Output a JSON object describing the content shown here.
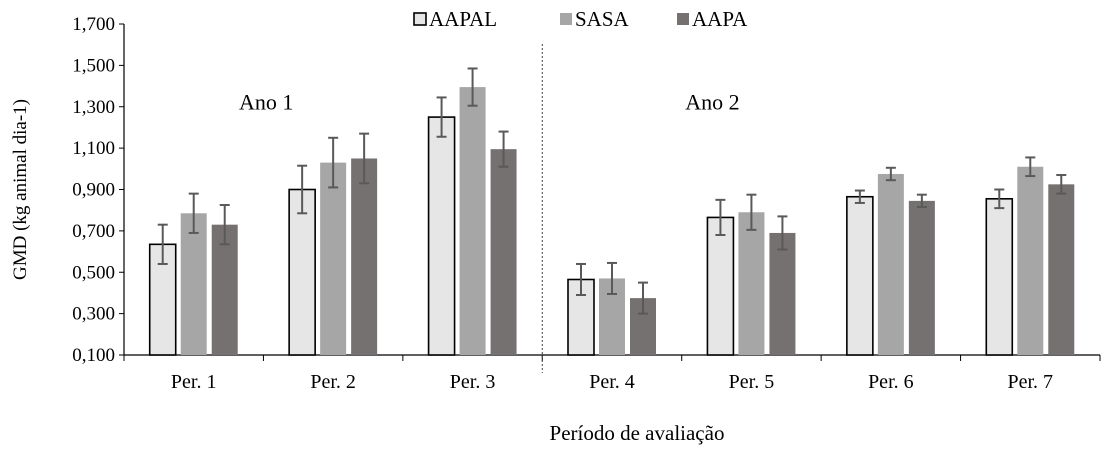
{
  "chart_data": {
    "type": "bar",
    "xlabel": "Período de avaliação",
    "ylabel": "GMD (kg animal dia-1)",
    "ylim": [
      0.1,
      1.7
    ],
    "yticks": [
      "0,100",
      "0,300",
      "0,500",
      "0,700",
      "0,900",
      "1,100",
      "1,300",
      "1,500",
      "1,700"
    ],
    "ytick_values": [
      0.1,
      0.3,
      0.5,
      0.7,
      0.9,
      1.1,
      1.3,
      1.5,
      1.7
    ],
    "categories": [
      "Per. 1",
      "Per. 2",
      "Per. 3",
      "Per. 4",
      "Per. 5",
      "Per. 6",
      "Per. 7"
    ],
    "series": [
      {
        "name": "AAPAL",
        "color": "#e6e6e6",
        "stroke": "#000000",
        "values": [
          0.635,
          0.9,
          1.25,
          0.465,
          0.765,
          0.865,
          0.855
        ],
        "errors": [
          0.095,
          0.115,
          0.095,
          0.075,
          0.085,
          0.03,
          0.045
        ]
      },
      {
        "name": "SASA",
        "color": "#a6a6a6",
        "stroke": "none",
        "values": [
          0.785,
          1.03,
          1.395,
          0.47,
          0.79,
          0.975,
          1.01
        ],
        "errors": [
          0.095,
          0.12,
          0.09,
          0.075,
          0.085,
          0.03,
          0.045
        ]
      },
      {
        "name": "AAPA",
        "color": "#767171",
        "stroke": "none",
        "values": [
          0.73,
          1.05,
          1.095,
          0.375,
          0.69,
          0.845,
          0.925
        ],
        "errors": [
          0.095,
          0.12,
          0.085,
          0.075,
          0.08,
          0.03,
          0.045
        ]
      }
    ],
    "annotations": [
      {
        "text": "Ano 1",
        "at_category": 1,
        "at_y": 1.5
      },
      {
        "text": "Ano 2",
        "at_category": 4.2,
        "at_y": 1.5
      }
    ],
    "divider_after_category": 3,
    "legend_position": "top-center",
    "grid": false
  }
}
